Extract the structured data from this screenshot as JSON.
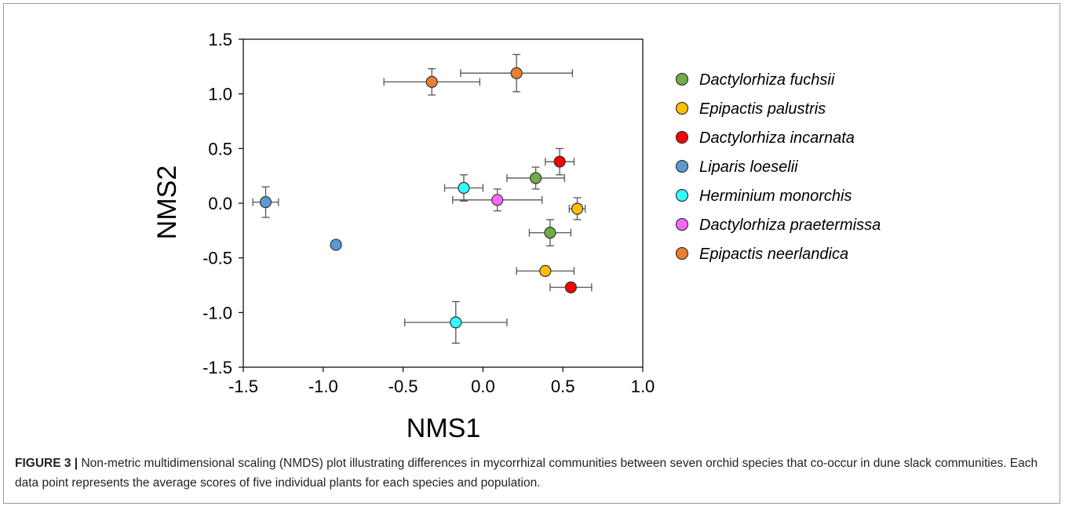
{
  "caption": {
    "label": "FIGURE 3 |",
    "text": " Non-metric multidimensional scaling (NMDS) plot illustrating differences in mycorrhizal communities between seven orchid species that co-occur in dune slack communities. Each data point represents the average scores of five individual plants for each species and population."
  },
  "chart_data": {
    "type": "scatter",
    "title": "",
    "xlabel": "NMS1",
    "ylabel": "NMS2",
    "xlim": [
      -1.5,
      1.0
    ],
    "ylim": [
      -1.5,
      1.5
    ],
    "xticks": [
      "-1.5",
      "-1.0",
      "-0.5",
      "0.0",
      "0.5",
      "1.0"
    ],
    "yticks": [
      "-1.5",
      "-1.0",
      "-0.5",
      "0.0",
      "0.5",
      "1.0",
      "1.5"
    ],
    "grid": false,
    "legend_position": "right",
    "series": [
      {
        "name": "Dactylorhiza fuchsii",
        "color": "#70ad47",
        "points": [
          {
            "x": 0.33,
            "y": 0.23,
            "xerr": 0.18,
            "yerr": 0.1
          },
          {
            "x": 0.42,
            "y": -0.27,
            "xerr": 0.13,
            "yerr": 0.12
          }
        ]
      },
      {
        "name": "Epipactis palustris",
        "color": "#ffc000",
        "points": [
          {
            "x": 0.59,
            "y": -0.05,
            "xerr": 0.05,
            "yerr": 0.1
          },
          {
            "x": 0.39,
            "y": -0.62,
            "xerr": 0.18,
            "yerr": 0.0
          }
        ]
      },
      {
        "name": "Dactylorhiza incarnata",
        "color": "#ff0000",
        "points": [
          {
            "x": 0.48,
            "y": 0.38,
            "xerr": 0.09,
            "yerr": 0.12
          },
          {
            "x": 0.55,
            "y": -0.77,
            "xerr": 0.13,
            "yerr": 0.0
          }
        ]
      },
      {
        "name": "Liparis loeselii",
        "color": "#5b9bd5",
        "points": [
          {
            "x": -1.36,
            "y": 0.01,
            "xerr": 0.08,
            "yerr": 0.14
          },
          {
            "x": -0.92,
            "y": -0.38,
            "xerr": 0.0,
            "yerr": 0.0
          }
        ]
      },
      {
        "name": "Herminium monorchis",
        "color": "#33ffff",
        "points": [
          {
            "x": -0.12,
            "y": 0.14,
            "xerr": 0.12,
            "yerr": 0.12
          },
          {
            "x": -0.17,
            "y": -1.09,
            "xerr": 0.32,
            "yerr": 0.19
          }
        ]
      },
      {
        "name": "Dactylorhiza praetermissa",
        "color": "#ff66ff",
        "points": [
          {
            "x": 0.09,
            "y": 0.03,
            "xerr": 0.28,
            "yerr": 0.1
          }
        ]
      },
      {
        "name": "Epipactis neerlandica",
        "color": "#ed7d31",
        "points": [
          {
            "x": -0.32,
            "y": 1.11,
            "xerr": 0.3,
            "yerr": 0.12
          },
          {
            "x": 0.21,
            "y": 1.19,
            "xerr": 0.35,
            "yerr": 0.17
          }
        ]
      }
    ]
  }
}
